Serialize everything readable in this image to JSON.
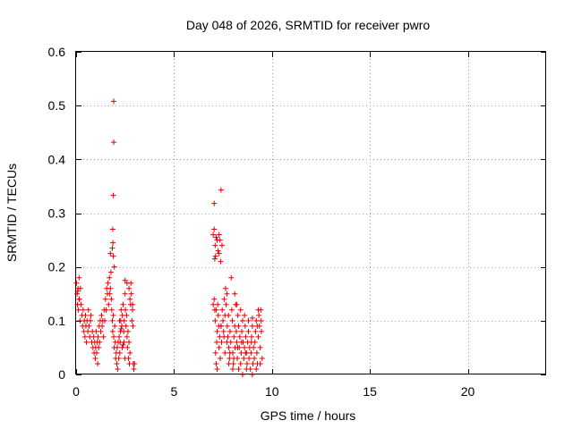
{
  "chart_data": {
    "type": "scatter",
    "title": "Day 048 of 2026, SRMTID for receiver pwro",
    "xlabel": "GPS time / hours",
    "ylabel": "SRMTID / TECUs",
    "xlim": [
      0,
      24
    ],
    "ylim": [
      0,
      0.6
    ],
    "x_ticks": [
      0,
      5,
      10,
      15,
      20
    ],
    "x_tick_labels": [
      "0",
      "5",
      "10",
      "15",
      "20"
    ],
    "y_ticks": [
      0,
      0.1,
      0.2,
      0.3,
      0.4,
      0.5,
      0.6
    ],
    "y_tick_labels": [
      "0",
      "0.1",
      "0.2",
      "0.3",
      "0.4",
      "0.5",
      "0.6"
    ],
    "grid": true,
    "marker": "+",
    "color": "#e00000",
    "series": [
      {
        "points": [
          [
            0.02,
            0.17
          ],
          [
            0.05,
            0.15
          ],
          [
            0.07,
            0.13
          ],
          [
            0.1,
            0.16
          ],
          [
            0.12,
            0.12
          ],
          [
            0.15,
            0.18
          ],
          [
            0.17,
            0.14
          ],
          [
            0.2,
            0.1
          ],
          [
            0.22,
            0.16
          ],
          [
            0.25,
            0.13
          ],
          [
            0.3,
            0.11
          ],
          [
            0.33,
            0.09
          ],
          [
            0.36,
            0.12
          ],
          [
            0.4,
            0.08
          ],
          [
            0.42,
            0.1
          ],
          [
            0.45,
            0.07
          ],
          [
            0.48,
            0.11
          ],
          [
            0.5,
            0.09
          ],
          [
            0.53,
            0.06
          ],
          [
            0.56,
            0.1
          ],
          [
            0.6,
            0.08
          ],
          [
            0.63,
            0.12
          ],
          [
            0.66,
            0.09
          ],
          [
            0.7,
            0.07
          ],
          [
            0.73,
            0.1
          ],
          [
            0.76,
            0.11
          ],
          [
            0.8,
            0.06
          ],
          [
            0.83,
            0.08
          ],
          [
            0.86,
            0.05
          ],
          [
            0.9,
            0.07
          ],
          [
            0.92,
            0.04
          ],
          [
            0.95,
            0.06
          ],
          [
            0.98,
            0.03
          ],
          [
            1.0,
            0.05
          ],
          [
            1.02,
            0.08
          ],
          [
            1.05,
            0.04
          ],
          [
            1.08,
            0.06
          ],
          [
            1.1,
            0.02
          ],
          [
            1.12,
            0.07
          ],
          [
            1.15,
            0.05
          ],
          [
            1.18,
            0.09
          ],
          [
            1.2,
            0.06
          ],
          [
            1.23,
            0.1
          ],
          [
            1.26,
            0.08
          ],
          [
            1.3,
            0.11
          ],
          [
            1.33,
            0.09
          ],
          [
            1.36,
            0.1
          ],
          [
            1.4,
            0.07
          ],
          [
            1.43,
            0.12
          ],
          [
            1.46,
            0.1
          ],
          [
            1.5,
            0.14
          ],
          [
            1.53,
            0.12
          ],
          [
            1.56,
            0.16
          ],
          [
            1.6,
            0.15
          ],
          [
            1.63,
            0.17
          ],
          [
            1.66,
            0.13
          ],
          [
            1.7,
            0.18
          ],
          [
            1.72,
            0.15
          ],
          [
            1.75,
            0.16
          ],
          [
            1.78,
            0.19
          ],
          [
            1.8,
            0.14
          ],
          [
            1.82,
            0.12
          ],
          [
            1.85,
            0.1
          ],
          [
            1.87,
            0.08
          ],
          [
            1.9,
            0.11
          ],
          [
            1.92,
            0.07
          ],
          [
            1.95,
            0.05
          ],
          [
            1.97,
            0.09
          ],
          [
            2.0,
            0.06
          ],
          [
            2.02,
            0.03
          ],
          [
            1.75,
            0.225
          ],
          [
            1.85,
            0.235
          ],
          [
            1.88,
            0.245
          ],
          [
            1.9,
            0.22
          ],
          [
            1.87,
            0.27
          ],
          [
            1.9,
            0.333
          ],
          [
            1.92,
            0.432
          ],
          [
            1.92,
            0.508
          ],
          [
            1.95,
            0.2
          ],
          [
            2.05,
            0.04
          ],
          [
            2.08,
            0.02
          ],
          [
            2.1,
            0.05
          ],
          [
            2.12,
            0.01
          ],
          [
            2.15,
            0.06
          ],
          [
            2.18,
            0.03
          ],
          [
            2.2,
            0.07
          ],
          [
            2.23,
            0.04
          ],
          [
            2.26,
            0.08
          ],
          [
            2.28,
            0.1
          ],
          [
            2.3,
            0.12
          ],
          [
            2.33,
            0.09
          ],
          [
            2.36,
            0.11
          ],
          [
            2.4,
            0.13
          ],
          [
            2.43,
            0.08
          ],
          [
            2.46,
            0.1
          ],
          [
            2.5,
            0.15
          ],
          [
            2.52,
            0.12
          ],
          [
            2.55,
            0.09
          ],
          [
            2.58,
            0.11
          ],
          [
            2.6,
            0.07
          ],
          [
            2.62,
            0.05
          ],
          [
            2.65,
            0.08
          ],
          [
            2.68,
            0.03
          ],
          [
            2.7,
            0.06
          ],
          [
            2.72,
            0.02
          ],
          [
            2.75,
            0.04
          ],
          [
            2.78,
            0.13
          ],
          [
            2.8,
            0.17
          ],
          [
            2.82,
            0.15
          ],
          [
            2.85,
            0.1
          ],
          [
            2.88,
            0.12
          ],
          [
            2.9,
            0.09
          ],
          [
            2.92,
            0.02
          ],
          [
            2.95,
            0.01
          ],
          [
            2.98,
            0.02
          ],
          [
            2.6,
            0.17
          ],
          [
            2.7,
            0.16
          ],
          [
            2.75,
            0.14
          ],
          [
            2.5,
            0.175
          ],
          [
            7.05,
            0.14
          ],
          [
            7.08,
            0.12
          ],
          [
            7.1,
            0.1
          ],
          [
            7.12,
            0.04
          ],
          [
            7.15,
            0.02
          ],
          [
            7.18,
            0.06
          ],
          [
            7.2,
            0.08
          ],
          [
            7.23,
            0.13
          ],
          [
            7.26,
            0.11
          ],
          [
            7.28,
            0.09
          ],
          [
            7.0,
            0.26
          ],
          [
            7.05,
            0.27
          ],
          [
            7.1,
            0.24
          ],
          [
            7.12,
            0.22
          ],
          [
            7.08,
            0.215
          ],
          [
            7.15,
            0.255
          ],
          [
            7.2,
            0.25
          ],
          [
            7.25,
            0.23
          ],
          [
            7.3,
            0.26
          ],
          [
            7.35,
            0.25
          ],
          [
            7.05,
            0.318
          ],
          [
            7.4,
            0.343
          ],
          [
            7.3,
            0.225
          ],
          [
            7.38,
            0.21
          ],
          [
            7.45,
            0.24
          ],
          [
            7.3,
            0.05
          ],
          [
            7.33,
            0.07
          ],
          [
            7.36,
            0.03
          ],
          [
            7.4,
            0.09
          ],
          [
            7.43,
            0.06
          ],
          [
            7.46,
            0.12
          ],
          [
            7.5,
            0.1
          ],
          [
            7.53,
            0.08
          ],
          [
            7.56,
            0.14
          ],
          [
            7.6,
            0.11
          ],
          [
            7.63,
            0.16
          ],
          [
            7.66,
            0.13
          ],
          [
            7.7,
            0.15
          ],
          [
            7.72,
            0.09
          ],
          [
            7.75,
            0.07
          ],
          [
            7.78,
            0.11
          ],
          [
            7.8,
            0.05
          ],
          [
            7.83,
            0.03
          ],
          [
            7.86,
            0.08
          ],
          [
            7.9,
            0.06
          ],
          [
            7.92,
            0.18
          ],
          [
            7.95,
            0.12
          ],
          [
            7.98,
            0.1
          ],
          [
            8.0,
            0.04
          ],
          [
            8.03,
            0.02
          ],
          [
            8.06,
            0.07
          ],
          [
            8.1,
            0.09
          ],
          [
            8.12,
            0.05
          ],
          [
            8.15,
            0.13
          ],
          [
            8.18,
            0.08
          ],
          [
            8.2,
            0.06
          ],
          [
            8.23,
            0.03
          ],
          [
            8.26,
            0.11
          ],
          [
            8.3,
            0.09
          ],
          [
            8.33,
            0.05
          ],
          [
            8.36,
            0.07
          ],
          [
            8.4,
            0.02
          ],
          [
            8.43,
            0.04
          ],
          [
            8.46,
            0.08
          ],
          [
            8.5,
            0.1
          ],
          [
            8.53,
            0.06
          ],
          [
            8.56,
            0.03
          ],
          [
            8.6,
            0.05
          ],
          [
            8.63,
            0.09
          ],
          [
            8.66,
            0.07
          ],
          [
            8.7,
            0.04
          ],
          [
            8.73,
            0.02
          ],
          [
            8.76,
            0.06
          ],
          [
            8.8,
            0.08
          ],
          [
            8.83,
            0.03
          ],
          [
            8.86,
            0.05
          ],
          [
            8.9,
            0.01
          ],
          [
            8.93,
            0.04
          ],
          [
            8.96,
            0.07
          ],
          [
            9.0,
            0.09
          ],
          [
            9.03,
            0.02
          ],
          [
            9.06,
            0.05
          ],
          [
            9.1,
            0.03
          ],
          [
            9.13,
            0.06
          ],
          [
            9.16,
            0.08
          ],
          [
            9.2,
            0.1
          ],
          [
            9.23,
            0.04
          ],
          [
            9.26,
            0.02
          ],
          [
            9.3,
            0.07
          ],
          [
            9.33,
            0.11
          ],
          [
            9.36,
            0.09
          ],
          [
            9.4,
            0.05
          ],
          [
            9.43,
            0.12
          ],
          [
            9.46,
            0.08
          ],
          [
            9.5,
            0.03
          ],
          [
            8.1,
            0.15
          ],
          [
            8.2,
            0.13
          ],
          [
            8.4,
            0.12
          ],
          [
            8.6,
            0.11
          ],
          [
            8.8,
            0.1
          ],
          [
            9.0,
            0.105
          ],
          [
            9.3,
            0.12
          ],
          [
            9.45,
            0.1
          ],
          [
            9.25,
            0.09
          ],
          [
            8.95,
            0.06
          ],
          [
            7.6,
            0.04
          ],
          [
            7.8,
            0.02
          ],
          [
            8.0,
            0.01
          ],
          [
            8.3,
            0.01
          ],
          [
            8.5,
            0.0
          ],
          [
            8.7,
            0.01
          ],
          [
            9.0,
            0.0
          ],
          [
            9.2,
            0.01
          ],
          [
            9.4,
            0.02
          ],
          [
            7.2,
            0.01
          ],
          [
            2.25,
            0.06
          ],
          [
            2.35,
            0.05
          ],
          [
            0.15,
            0.14
          ],
          [
            0.08,
            0.155
          ],
          [
            2.88,
            0.13
          ],
          [
            2.22,
            0.1
          ],
          [
            2.4,
            0.055
          ],
          [
            2.3,
            0.085
          ],
          [
            2.5,
            0.03
          ],
          [
            2.45,
            0.06
          ],
          [
            7.0,
            0.13
          ],
          [
            7.15,
            0.12
          ],
          [
            7.4,
            0.09
          ],
          [
            7.55,
            0.07
          ],
          [
            7.7,
            0.06
          ],
          [
            7.85,
            0.04
          ],
          [
            8.05,
            0.03
          ],
          [
            8.25,
            0.05
          ],
          [
            8.45,
            0.06
          ],
          [
            8.65,
            0.04
          ]
        ]
      }
    ]
  }
}
